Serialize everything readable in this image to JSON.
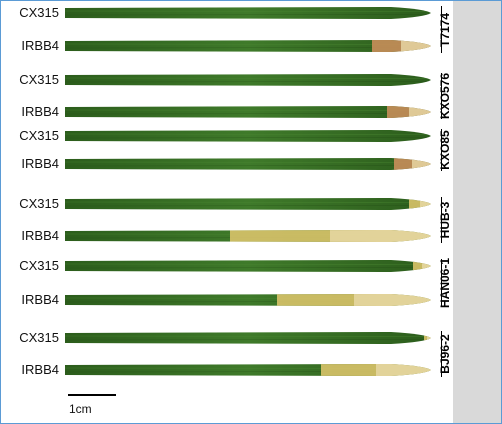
{
  "pairs": [
    {
      "strain": "T7174",
      "rows": [
        {
          "cultivar": "CX315",
          "lesion": 0.0
        },
        {
          "cultivar": "IRBB4",
          "lesion": 0.16
        }
      ]
    },
    {
      "strain": "KXO576",
      "rows": [
        {
          "cultivar": "CX315",
          "lesion": 0.0
        },
        {
          "cultivar": "IRBB4",
          "lesion": 0.12
        }
      ]
    },
    {
      "strain": "KXO85",
      "rows": [
        {
          "cultivar": "CX315",
          "lesion": 0.0
        },
        {
          "cultivar": "IRBB4",
          "lesion": 0.1
        }
      ]
    },
    {
      "strain": "HUB-3",
      "rows": [
        {
          "cultivar": "CX315",
          "lesion": 0.06
        },
        {
          "cultivar": "IRBB4",
          "lesion": 0.55
        }
      ]
    },
    {
      "strain": "HAN06-1",
      "rows": [
        {
          "cultivar": "CX315",
          "lesion": 0.05
        },
        {
          "cultivar": "IRBB4",
          "lesion": 0.42
        }
      ]
    },
    {
      "strain": "BJ96-2",
      "rows": [
        {
          "cultivar": "CX315",
          "lesion": 0.02
        },
        {
          "cultivar": "IRBB4",
          "lesion": 0.3
        }
      ]
    }
  ],
  "scale_bar_label": "1cm",
  "colors": {
    "leaf_green": "#3f7a2a",
    "leaf_dark": "#2c5d1c",
    "lesion_yellow": "#d9c36a",
    "lesion_pale": "#e8d9a8",
    "lesion_brown": "#c88e5a",
    "frame_border": "#5b9bd5",
    "sidebar": "#d9d9d9"
  }
}
